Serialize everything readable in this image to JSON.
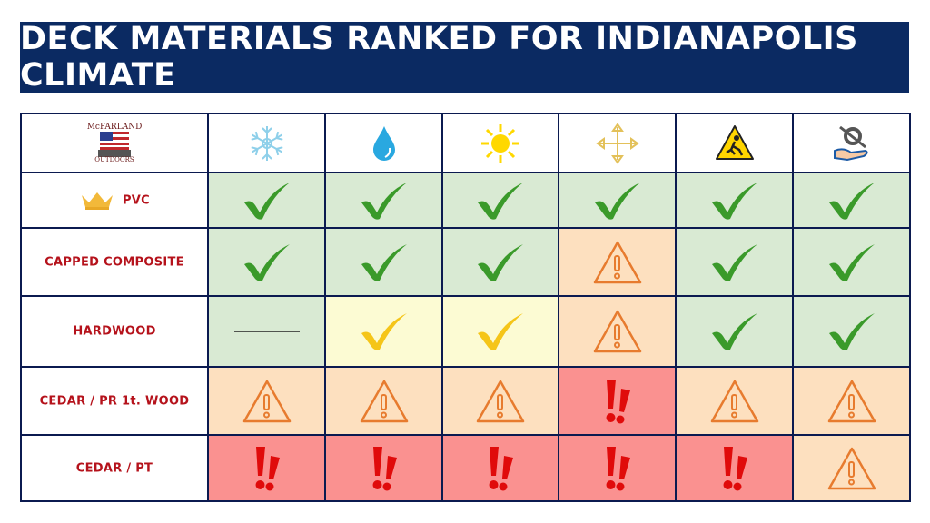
{
  "title": "DECK MATERIALS RANKED FOR INDIANAPOLIS CLIMATE",
  "logo": {
    "top": "McFARLAND",
    "bottom": "OUTDOORS"
  },
  "columns": [
    "snowflake-icon",
    "water-drop-icon",
    "sun-icon",
    "expansion-arrows-icon",
    "slip-hazard-icon",
    "maintenance-icon"
  ],
  "rows": [
    {
      "label": "PVC",
      "crown": true,
      "cells": [
        "check",
        "check",
        "check",
        "check",
        "check",
        "check"
      ]
    },
    {
      "label": "CAPPED COMPOSITE",
      "cells": [
        "check",
        "check",
        "check",
        "warning",
        "check",
        "check"
      ]
    },
    {
      "label": "HARDWOOD",
      "cells": [
        "dash",
        "check-yellow",
        "check-yellow",
        "warning",
        "check",
        "check"
      ]
    },
    {
      "label": "CEDAR / PR 1t. WOOD",
      "cells": [
        "warning",
        "warning",
        "warning",
        "danger",
        "warning",
        "warning"
      ]
    },
    {
      "label": "CEDAR / PT",
      "cells": [
        "danger",
        "danger",
        "danger",
        "danger",
        "danger",
        "warning"
      ]
    }
  ],
  "colors": {
    "check": "#d9ead3",
    "check-yellow": "#fcfbd3",
    "warning": "#fde0bf",
    "danger": "#fa9190",
    "dash": "#d9ead3"
  }
}
